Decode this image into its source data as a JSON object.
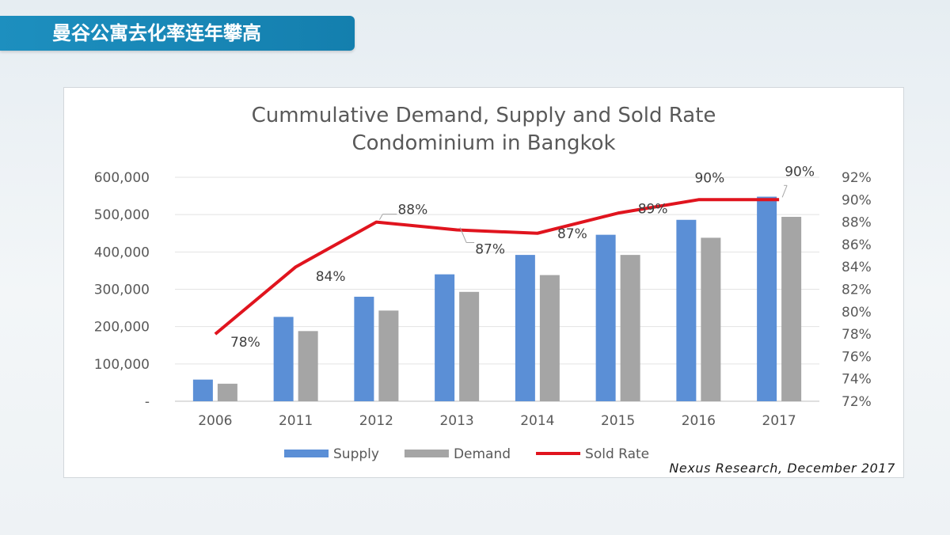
{
  "slide": {
    "title": "曼谷公寓去化率连年攀高"
  },
  "source_note": "Nexus Research, December 2017",
  "chart_data": {
    "type": "bar",
    "title_lines": [
      "Cummulative Demand, Supply and Sold Rate",
      "Condominium in Bangkok"
    ],
    "categories": [
      "2006",
      "2011",
      "2012",
      "2013",
      "2014",
      "2015",
      "2016",
      "2017"
    ],
    "series": [
      {
        "name": "Supply",
        "type": "bar",
        "color": "#5b8fd6",
        "values": [
          58000,
          226000,
          280000,
          340000,
          392000,
          446000,
          486000,
          548000
        ]
      },
      {
        "name": "Demand",
        "type": "bar",
        "color": "#a5a5a5",
        "values": [
          47000,
          188000,
          243000,
          293000,
          338000,
          392000,
          438000,
          494000
        ]
      },
      {
        "name": "Sold Rate",
        "type": "line",
        "axis": "right",
        "color": "#e0141e",
        "values": [
          78,
          84,
          88,
          87.3,
          87,
          88.8,
          90,
          90
        ],
        "labels": [
          "78%",
          "84%",
          "88%",
          "87%",
          "87%",
          "89%",
          "90%",
          "90%"
        ]
      }
    ],
    "y_left": {
      "min": 0,
      "max": 600000,
      "step": 100000,
      "tick_labels": [
        "-",
        "100,000",
        "200,000",
        "300,000",
        "400,000",
        "500,000",
        "600,000"
      ]
    },
    "y_right": {
      "min": 72,
      "max": 92,
      "step": 2,
      "tick_labels": [
        "72%",
        "74%",
        "76%",
        "78%",
        "80%",
        "82%",
        "84%",
        "86%",
        "88%",
        "90%",
        "92%"
      ]
    },
    "gridlines": true,
    "legend_position": "bottom"
  }
}
